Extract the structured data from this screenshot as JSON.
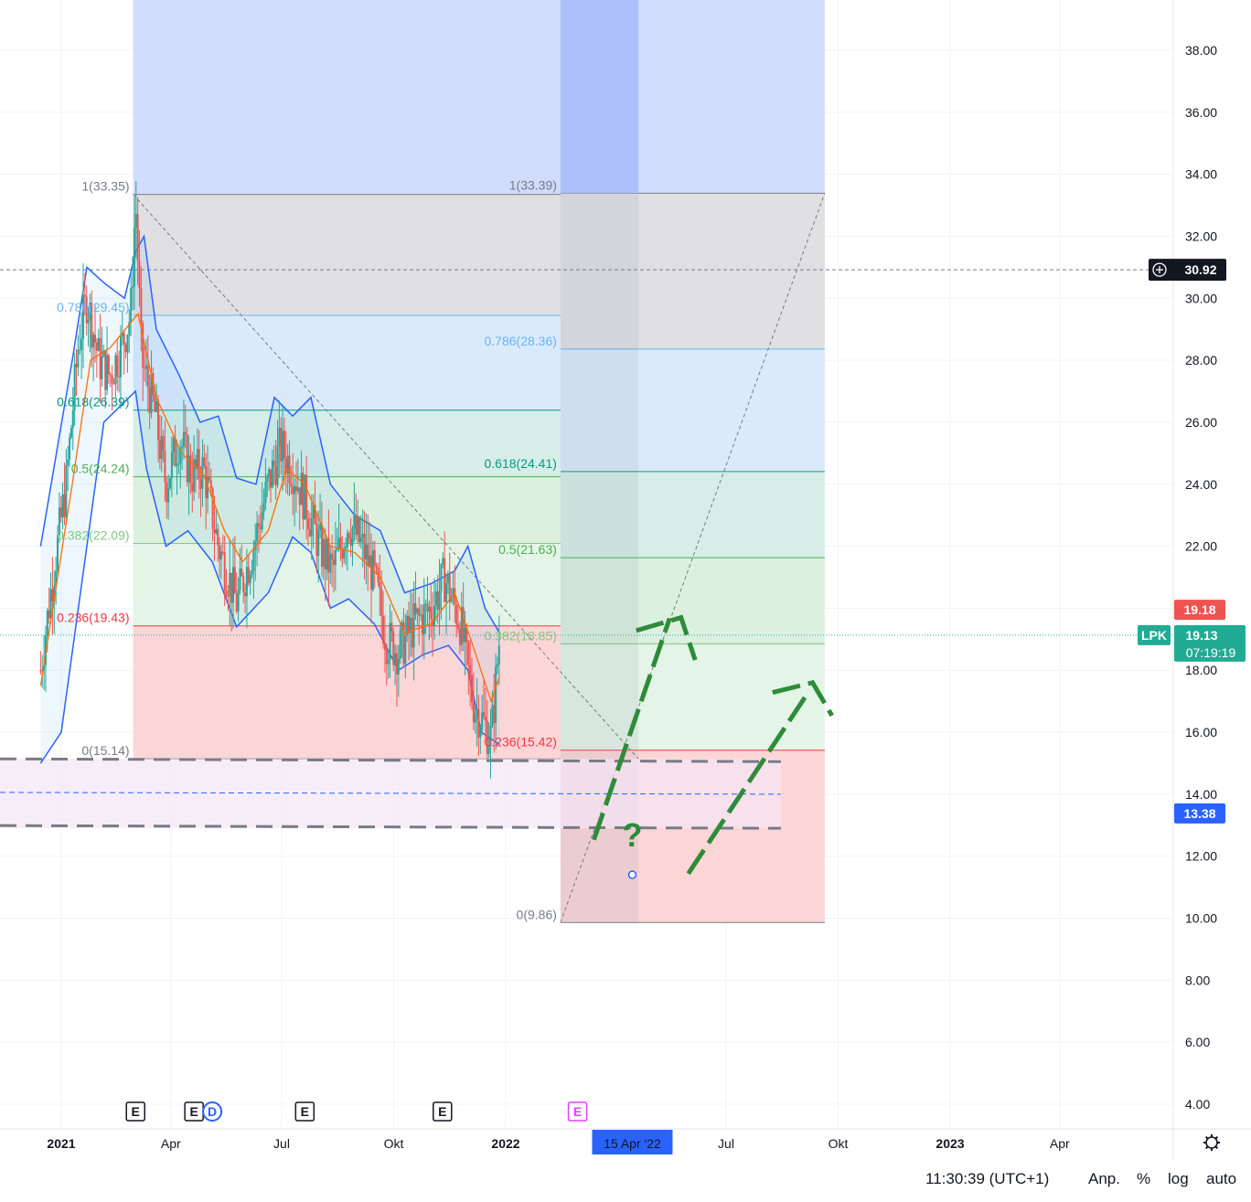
{
  "chart_data": {
    "type": "candlestick",
    "symbol": "LPK",
    "price_axis": {
      "ticks": [
        "4.00",
        "6.00",
        "8.00",
        "10.00",
        "12.00",
        "14.00",
        "16.00",
        "18.00",
        "20.00",
        "22.00",
        "24.00",
        "26.00",
        "28.00",
        "30.00",
        "32.00",
        "34.00",
        "36.00",
        "38.00"
      ],
      "range": [
        3.3,
        39.6
      ]
    },
    "time_axis": {
      "ticks": [
        {
          "label": "2021",
          "date": "2021-01-01",
          "bold": true
        },
        {
          "label": "Apr",
          "date": "2021-04-01"
        },
        {
          "label": "Jul",
          "date": "2021-07-01"
        },
        {
          "label": "Okt",
          "date": "2021-10-01"
        },
        {
          "label": "2022",
          "date": "2022-01-01",
          "bold": true
        },
        {
          "label": "Jul",
          "date": "2022-07-01"
        },
        {
          "label": "Okt",
          "date": "2022-10-01"
        },
        {
          "label": "2023",
          "date": "2023-01-01",
          "bold": true
        },
        {
          "label": "Apr",
          "date": "2023-04-01"
        }
      ],
      "highlight": {
        "label": "15 Apr '22",
        "date": "2022-04-15"
      }
    },
    "price_labels": {
      "crosshair": "30.92",
      "last_close": "19.18",
      "current": "19.13",
      "countdown": "07:19:19",
      "level": "13.38"
    },
    "price_series": [
      {
        "date": "2020-12-15",
        "price": 18.0
      },
      {
        "date": "2020-12-25",
        "price": 21.0
      },
      {
        "date": "2021-01-05",
        "price": 24.0
      },
      {
        "date": "2021-01-15",
        "price": 28.5
      },
      {
        "date": "2021-01-22",
        "price": 30.0
      },
      {
        "date": "2021-02-01",
        "price": 28.0
      },
      {
        "date": "2021-02-10",
        "price": 27.5
      },
      {
        "date": "2021-02-20",
        "price": 28.5
      },
      {
        "date": "2021-02-27",
        "price": 29.5
      },
      {
        "date": "2021-03-03",
        "price": 33.2
      },
      {
        "date": "2021-03-08",
        "price": 28.0
      },
      {
        "date": "2021-03-18",
        "price": 26.5
      },
      {
        "date": "2021-03-28",
        "price": 24.0
      },
      {
        "date": "2021-04-08",
        "price": 25.5
      },
      {
        "date": "2021-04-18",
        "price": 24.3
      },
      {
        "date": "2021-04-28",
        "price": 24.5
      },
      {
        "date": "2021-05-10",
        "price": 22.0
      },
      {
        "date": "2021-05-25",
        "price": 20.2
      },
      {
        "date": "2021-06-08",
        "price": 22.0
      },
      {
        "date": "2021-06-20",
        "price": 24.0
      },
      {
        "date": "2021-06-30",
        "price": 25.2
      },
      {
        "date": "2021-07-10",
        "price": 24.5
      },
      {
        "date": "2021-07-20",
        "price": 23.5
      },
      {
        "date": "2021-08-01",
        "price": 22.0
      },
      {
        "date": "2021-08-12",
        "price": 21.2
      },
      {
        "date": "2021-08-25",
        "price": 22.8
      },
      {
        "date": "2021-09-05",
        "price": 22.0
      },
      {
        "date": "2021-09-15",
        "price": 21.0
      },
      {
        "date": "2021-09-25",
        "price": 19.0
      },
      {
        "date": "2021-10-05",
        "price": 18.6
      },
      {
        "date": "2021-10-18",
        "price": 19.5
      },
      {
        "date": "2021-11-01",
        "price": 20.0
      },
      {
        "date": "2021-11-12",
        "price": 21.0
      },
      {
        "date": "2021-11-25",
        "price": 19.5
      },
      {
        "date": "2021-12-05",
        "price": 17.0
      },
      {
        "date": "2021-12-15",
        "price": 16.2
      },
      {
        "date": "2021-12-20",
        "price": 15.8
      },
      {
        "date": "2021-12-27",
        "price": 19.1
      }
    ],
    "bollinger_upper": [
      {
        "date": "2020-12-15",
        "price": 22.0
      },
      {
        "date": "2021-01-10",
        "price": 28.0
      },
      {
        "date": "2021-01-22",
        "price": 31.0
      },
      {
        "date": "2021-02-05",
        "price": 30.5
      },
      {
        "date": "2021-02-22",
        "price": 30.0
      },
      {
        "date": "2021-03-03",
        "price": 31.5
      },
      {
        "date": "2021-03-10",
        "price": 32.0
      },
      {
        "date": "2021-03-20",
        "price": 29.0
      },
      {
        "date": "2021-04-08",
        "price": 27.5
      },
      {
        "date": "2021-04-25",
        "price": 26.0
      },
      {
        "date": "2021-05-10",
        "price": 26.2
      },
      {
        "date": "2021-05-25",
        "price": 24.2
      },
      {
        "date": "2021-06-10",
        "price": 24.0
      },
      {
        "date": "2021-06-25",
        "price": 26.8
      },
      {
        "date": "2021-07-10",
        "price": 26.2
      },
      {
        "date": "2021-07-25",
        "price": 26.8
      },
      {
        "date": "2021-08-10",
        "price": 24.0
      },
      {
        "date": "2021-08-30",
        "price": 23.0
      },
      {
        "date": "2021-09-20",
        "price": 22.5
      },
      {
        "date": "2021-10-10",
        "price": 20.5
      },
      {
        "date": "2021-11-01",
        "price": 20.8
      },
      {
        "date": "2021-11-20",
        "price": 21.2
      },
      {
        "date": "2021-12-01",
        "price": 22.0
      },
      {
        "date": "2021-12-15",
        "price": 20.0
      },
      {
        "date": "2021-12-27",
        "price": 19.2
      }
    ],
    "bollinger_lower": [
      {
        "date": "2020-12-15",
        "price": 15.0
      },
      {
        "date": "2021-01-01",
        "price": 16.0
      },
      {
        "date": "2021-01-22",
        "price": 22.0
      },
      {
        "date": "2021-02-05",
        "price": 26.0
      },
      {
        "date": "2021-03-03",
        "price": 27.0
      },
      {
        "date": "2021-03-12",
        "price": 24.5
      },
      {
        "date": "2021-03-28",
        "price": 22.0
      },
      {
        "date": "2021-04-15",
        "price": 22.5
      },
      {
        "date": "2021-05-05",
        "price": 21.5
      },
      {
        "date": "2021-05-25",
        "price": 19.4
      },
      {
        "date": "2021-06-20",
        "price": 20.5
      },
      {
        "date": "2021-07-10",
        "price": 22.3
      },
      {
        "date": "2021-07-25",
        "price": 21.8
      },
      {
        "date": "2021-08-10",
        "price": 20.0
      },
      {
        "date": "2021-08-25",
        "price": 20.3
      },
      {
        "date": "2021-09-15",
        "price": 19.5
      },
      {
        "date": "2021-10-05",
        "price": 18.0
      },
      {
        "date": "2021-10-25",
        "price": 18.5
      },
      {
        "date": "2021-11-15",
        "price": 18.8
      },
      {
        "date": "2021-12-01",
        "price": 18.0
      },
      {
        "date": "2021-12-12",
        "price": 16.0
      },
      {
        "date": "2021-12-27",
        "price": 15.6
      }
    ],
    "moving_average": [
      {
        "date": "2020-12-15",
        "price": 17.5
      },
      {
        "date": "2021-01-10",
        "price": 24.0
      },
      {
        "date": "2021-01-25",
        "price": 28.0
      },
      {
        "date": "2021-02-10",
        "price": 28.4
      },
      {
        "date": "2021-03-05",
        "price": 29.5
      },
      {
        "date": "2021-03-20",
        "price": 26.8
      },
      {
        "date": "2021-04-10",
        "price": 25.0
      },
      {
        "date": "2021-04-28",
        "price": 24.3
      },
      {
        "date": "2021-05-15",
        "price": 22.5
      },
      {
        "date": "2021-05-30",
        "price": 21.5
      },
      {
        "date": "2021-06-20",
        "price": 22.5
      },
      {
        "date": "2021-07-05",
        "price": 24.5
      },
      {
        "date": "2021-07-20",
        "price": 24.0
      },
      {
        "date": "2021-08-10",
        "price": 22.0
      },
      {
        "date": "2021-08-30",
        "price": 21.8
      },
      {
        "date": "2021-09-20",
        "price": 21.0
      },
      {
        "date": "2021-10-10",
        "price": 19.2
      },
      {
        "date": "2021-11-01",
        "price": 19.5
      },
      {
        "date": "2021-11-20",
        "price": 20.5
      },
      {
        "date": "2021-12-05",
        "price": 18.8
      },
      {
        "date": "2021-12-20",
        "price": 17.0
      },
      {
        "date": "2021-12-27",
        "price": 17.8
      }
    ],
    "fib_left": {
      "start": "2021-03-01",
      "end": "2022-04-20",
      "levels": [
        {
          "label": "1(33.35)",
          "price": 33.35,
          "color": "#787b86"
        },
        {
          "label": "0.786(29.45)",
          "price": 29.45,
          "color": "#64b5f6"
        },
        {
          "label": "0.618(26.39)",
          "price": 26.39,
          "color": "#089981"
        },
        {
          "label": "0.5(24.24)",
          "price": 24.24,
          "color": "#4caf50"
        },
        {
          "label": "0.382(22.09)",
          "price": 22.09,
          "color": "#81c784"
        },
        {
          "label": "0.236(19.43)",
          "price": 19.43,
          "color": "#f23645"
        },
        {
          "label": "0(15.14)",
          "price": 15.14,
          "color": "#787b86"
        }
      ]
    },
    "fib_right": {
      "start": "2022-02-15",
      "end": "2022-09-20",
      "levels": [
        {
          "label": "1(33.39)",
          "price": 33.39,
          "color": "#787b86"
        },
        {
          "label": "0.786(28.36)",
          "price": 28.36,
          "color": "#64b5f6"
        },
        {
          "label": "0.618(24.41)",
          "price": 24.41,
          "color": "#089981"
        },
        {
          "label": "0.5(21.63)",
          "price": 21.63,
          "color": "#4caf50"
        },
        {
          "label": "0.382(18.85)",
          "price": 18.85,
          "color": "#81c784"
        },
        {
          "label": "0.236(15.42)",
          "price": 15.42,
          "color": "#f23645"
        },
        {
          "label": "0(9.86)",
          "price": 9.86,
          "color": "#787b86"
        }
      ]
    },
    "support_zone": {
      "top": 15.14,
      "middle": 14.0,
      "bottom": 12.9,
      "end": "2022-08-15"
    },
    "events": [
      {
        "label": "E",
        "date": "2021-03-03"
      },
      {
        "label": "E",
        "date": "2021-04-20"
      },
      {
        "label": "D",
        "date": "2021-05-05"
      },
      {
        "label": "E",
        "date": "2021-07-20"
      },
      {
        "label": "E",
        "date": "2021-11-10"
      },
      {
        "label": "E",
        "date": "2022-03-01",
        "future": true
      }
    ],
    "annotation": {
      "text": "?",
      "date": "2022-04-15",
      "price": 12.5
    }
  },
  "bottom_bar": {
    "time": "11:30:39 (UTC+1)",
    "adj": "Anp.",
    "percent": "%",
    "log": "log",
    "auto": "auto"
  },
  "colors": {
    "up": "#26a69a",
    "down": "#ef5350",
    "band": "#2962ff",
    "ma": "#ff6d00",
    "last": "#ef5350",
    "current": "#22ab94",
    "level": "#2962ff",
    "text": "#131722"
  }
}
